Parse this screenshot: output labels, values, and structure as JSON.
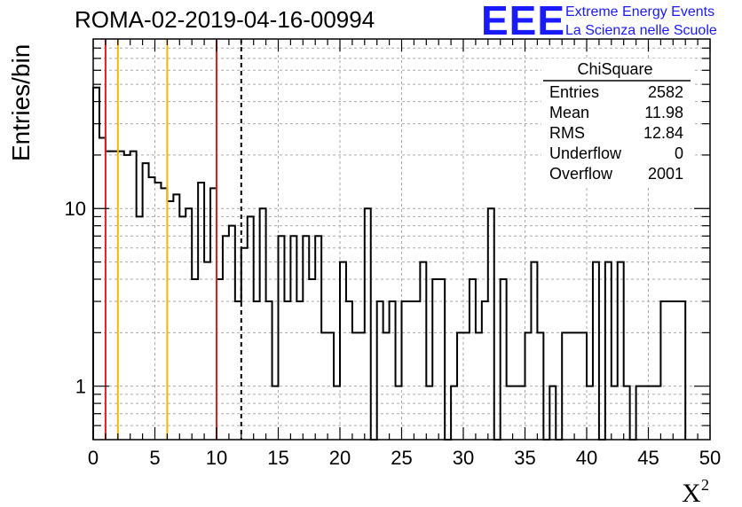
{
  "title": "ROMA-02-2019-04-16-00994",
  "logo": {
    "mark": "EEE",
    "line1": "Extreme Energy Events",
    "line2": "La Scienza nelle Scuole"
  },
  "stats_box": {
    "name": "ChiSquare",
    "rows": [
      {
        "label": "Entries",
        "value": "2582"
      },
      {
        "label": "Mean",
        "value": "11.98"
      },
      {
        "label": "RMS",
        "value": "12.84"
      },
      {
        "label": "Underflow",
        "value": "0"
      },
      {
        "label": "Overflow",
        "value": "2001"
      }
    ]
  },
  "chart_data": {
    "type": "histogram",
    "title": "ROMA-02-2019-04-16-00994",
    "xlabel": "X",
    "xlabel_superscript": "2",
    "ylabel": "Entries/bin",
    "xlim": [
      0,
      50
    ],
    "ylim": [
      0.5,
      90
    ],
    "log_y": true,
    "grid": true,
    "xticks": [
      0,
      5,
      10,
      15,
      20,
      25,
      30,
      35,
      40,
      45,
      50
    ],
    "ytick_labels": [
      {
        "value": 1,
        "text": "1"
      },
      {
        "value": 10,
        "text": "10"
      }
    ],
    "bin_width": 0.5,
    "bins": [
      {
        "x": 0.0,
        "count": 48
      },
      {
        "x": 0.5,
        "count": 25
      },
      {
        "x": 1.0,
        "count": 21
      },
      {
        "x": 1.5,
        "count": 21
      },
      {
        "x": 2.0,
        "count": 21
      },
      {
        "x": 2.5,
        "count": 20
      },
      {
        "x": 3.0,
        "count": 21
      },
      {
        "x": 3.5,
        "count": 9
      },
      {
        "x": 4.0,
        "count": 18
      },
      {
        "x": 4.5,
        "count": 15
      },
      {
        "x": 5.0,
        "count": 14
      },
      {
        "x": 5.5,
        "count": 13
      },
      {
        "x": 6.0,
        "count": 11
      },
      {
        "x": 6.5,
        "count": 12
      },
      {
        "x": 7.0,
        "count": 9
      },
      {
        "x": 7.5,
        "count": 10
      },
      {
        "x": 8.0,
        "count": 4
      },
      {
        "x": 8.5,
        "count": 14
      },
      {
        "x": 9.0,
        "count": 5
      },
      {
        "x": 9.5,
        "count": 13
      },
      {
        "x": 10.0,
        "count": 4
      },
      {
        "x": 10.5,
        "count": 7
      },
      {
        "x": 11.0,
        "count": 8
      },
      {
        "x": 11.5,
        "count": 3
      },
      {
        "x": 12.0,
        "count": 6
      },
      {
        "x": 12.5,
        "count": 9
      },
      {
        "x": 13.0,
        "count": 3
      },
      {
        "x": 13.5,
        "count": 10
      },
      {
        "x": 14.0,
        "count": 3
      },
      {
        "x": 14.5,
        "count": 1
      },
      {
        "x": 15.0,
        "count": 7
      },
      {
        "x": 15.5,
        "count": 3
      },
      {
        "x": 16.0,
        "count": 7
      },
      {
        "x": 16.5,
        "count": 3
      },
      {
        "x": 17.0,
        "count": 7
      },
      {
        "x": 17.5,
        "count": 4
      },
      {
        "x": 18.0,
        "count": 7
      },
      {
        "x": 18.5,
        "count": 2
      },
      {
        "x": 19.0,
        "count": 2
      },
      {
        "x": 19.5,
        "count": 1
      },
      {
        "x": 20.0,
        "count": 5
      },
      {
        "x": 20.5,
        "count": 3
      },
      {
        "x": 21.0,
        "count": 2
      },
      {
        "x": 21.5,
        "count": 2
      },
      {
        "x": 22.0,
        "count": 10
      },
      {
        "x": 22.5,
        "count": 0
      },
      {
        "x": 23.0,
        "count": 3
      },
      {
        "x": 23.5,
        "count": 2
      },
      {
        "x": 24.0,
        "count": 3
      },
      {
        "x": 24.5,
        "count": 1
      },
      {
        "x": 25.0,
        "count": 3
      },
      {
        "x": 25.5,
        "count": 3
      },
      {
        "x": 26.0,
        "count": 3
      },
      {
        "x": 26.5,
        "count": 5
      },
      {
        "x": 27.0,
        "count": 1
      },
      {
        "x": 27.5,
        "count": 4
      },
      {
        "x": 28.0,
        "count": 4
      },
      {
        "x": 28.5,
        "count": 0
      },
      {
        "x": 29.0,
        "count": 1
      },
      {
        "x": 29.5,
        "count": 2
      },
      {
        "x": 30.0,
        "count": 2
      },
      {
        "x": 30.5,
        "count": 4
      },
      {
        "x": 31.0,
        "count": 2
      },
      {
        "x": 31.5,
        "count": 3
      },
      {
        "x": 32.0,
        "count": 10
      },
      {
        "x": 32.5,
        "count": 0
      },
      {
        "x": 33.0,
        "count": 4
      },
      {
        "x": 33.5,
        "count": 1
      },
      {
        "x": 34.0,
        "count": 1
      },
      {
        "x": 34.5,
        "count": 1
      },
      {
        "x": 35.0,
        "count": 2
      },
      {
        "x": 35.5,
        "count": 5
      },
      {
        "x": 36.0,
        "count": 2
      },
      {
        "x": 36.5,
        "count": 0
      },
      {
        "x": 37.0,
        "count": 1
      },
      {
        "x": 37.5,
        "count": 0
      },
      {
        "x": 38.0,
        "count": 2
      },
      {
        "x": 38.5,
        "count": 2
      },
      {
        "x": 39.0,
        "count": 2
      },
      {
        "x": 39.5,
        "count": 2
      },
      {
        "x": 40.0,
        "count": 1
      },
      {
        "x": 40.5,
        "count": 5
      },
      {
        "x": 41.0,
        "count": 0
      },
      {
        "x": 41.5,
        "count": 5
      },
      {
        "x": 42.0,
        "count": 1
      },
      {
        "x": 42.5,
        "count": 5
      },
      {
        "x": 43.0,
        "count": 1
      },
      {
        "x": 43.5,
        "count": 0
      },
      {
        "x": 44.0,
        "count": 1
      },
      {
        "x": 44.5,
        "count": 1
      },
      {
        "x": 45.0,
        "count": 1
      },
      {
        "x": 45.5,
        "count": 1
      },
      {
        "x": 46.0,
        "count": 3
      },
      {
        "x": 46.5,
        "count": 3
      },
      {
        "x": 47.0,
        "count": 3
      },
      {
        "x": 47.5,
        "count": 3
      }
    ],
    "vertical_markers": [
      {
        "x": 1,
        "color": "#e01e1e",
        "style": "solid"
      },
      {
        "x": 2,
        "color": "#f5b800",
        "style": "solid"
      },
      {
        "x": 6,
        "color": "#f5b800",
        "style": "solid"
      },
      {
        "x": 10,
        "color": "#e01e1e",
        "style": "solid"
      },
      {
        "x": 12,
        "color": "#000000",
        "style": "dashed"
      }
    ]
  }
}
